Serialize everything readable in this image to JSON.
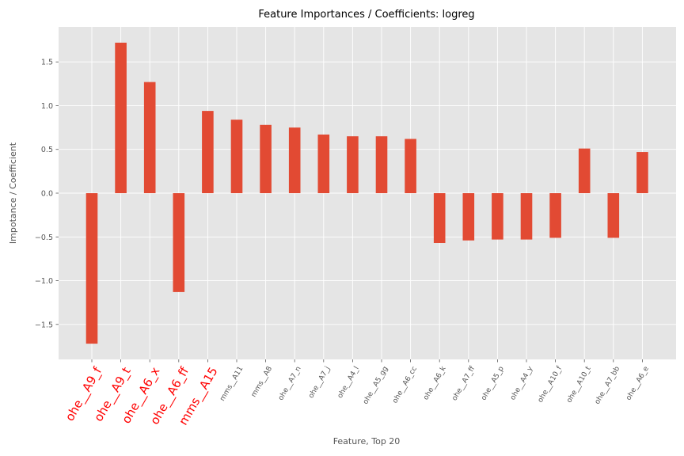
{
  "chart_data": {
    "type": "bar",
    "title": "Feature Importances / Coefficients: logreg",
    "xlabel": "Feature, Top 20",
    "ylabel": "Impotance / Coefficient",
    "categories": [
      "ohe__A9_f",
      "ohe__A9_t",
      "ohe__A6_x",
      "ohe__A6_ff",
      "mms__A15",
      "mms__A11",
      "mms__A8",
      "ohe__A7_n",
      "ohe__A7_j",
      "ohe__A4_l",
      "ohe__A5_gg",
      "ohe__A6_cc",
      "ohe__A6_k",
      "ohe__A7_ff",
      "ohe__A5_p",
      "ohe__A4_y",
      "ohe__A10_f",
      "ohe__A10_t",
      "ohe__A7_bb",
      "ohe__A6_e"
    ],
    "highlighted_categories": [
      "ohe__A9_f",
      "ohe__A9_t",
      "ohe__A6_x",
      "ohe__A6_ff",
      "mms__A15"
    ],
    "values": [
      -1.72,
      1.72,
      1.27,
      -1.13,
      0.94,
      0.84,
      0.78,
      0.75,
      0.67,
      0.65,
      0.65,
      0.62,
      -0.57,
      -0.54,
      -0.53,
      -0.53,
      -0.51,
      0.51,
      -0.51,
      0.47
    ],
    "yticks": [
      -1.5,
      -1.0,
      -0.5,
      0.0,
      0.5,
      1.0,
      1.5
    ],
    "ytick_labels": [
      "−1.5",
      "−1.0",
      "−0.5",
      "0.0",
      "0.5",
      "1.0",
      "1.5"
    ],
    "ylim": [
      -1.9,
      1.9
    ],
    "grid": true,
    "colors": {
      "bar": "#E24A33",
      "background": "#E5E5E5",
      "grid": "#FFFFFF",
      "highlight_label": "#FF0000",
      "label": "#555555"
    }
  }
}
